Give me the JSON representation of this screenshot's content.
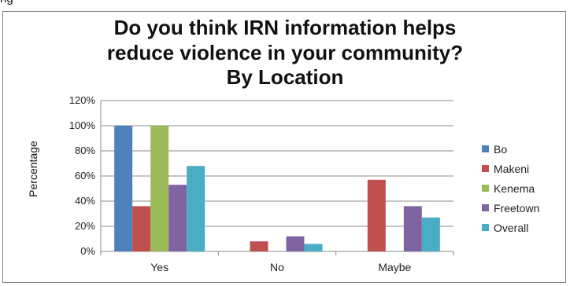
{
  "page": {
    "partial_text": "ng"
  },
  "chart_data": {
    "type": "bar",
    "title_lines": [
      "Do you think IRN information helps",
      "reduce violence in your community?",
      "By Location"
    ],
    "xlabel": "",
    "ylabel": "Percentage",
    "ylim": [
      0,
      120
    ],
    "yticks": [
      "0%",
      "20%",
      "40%",
      "60%",
      "80%",
      "100%",
      "120%"
    ],
    "categories": [
      "Yes",
      "No",
      "Maybe"
    ],
    "series": [
      {
        "name": "Bo",
        "color": "#4f81bd",
        "values": [
          100,
          0,
          0
        ]
      },
      {
        "name": "Makeni",
        "color": "#c0504d",
        "values": [
          36,
          8,
          57
        ]
      },
      {
        "name": "Kenema",
        "color": "#9bbb59",
        "values": [
          100,
          0,
          0
        ]
      },
      {
        "name": "Freetown",
        "color": "#8064a2",
        "values": [
          53,
          12,
          36
        ]
      },
      {
        "name": "Overall",
        "color": "#4bacc6",
        "values": [
          68,
          6,
          27
        ]
      }
    ],
    "grid": true,
    "legend_position": "right"
  }
}
